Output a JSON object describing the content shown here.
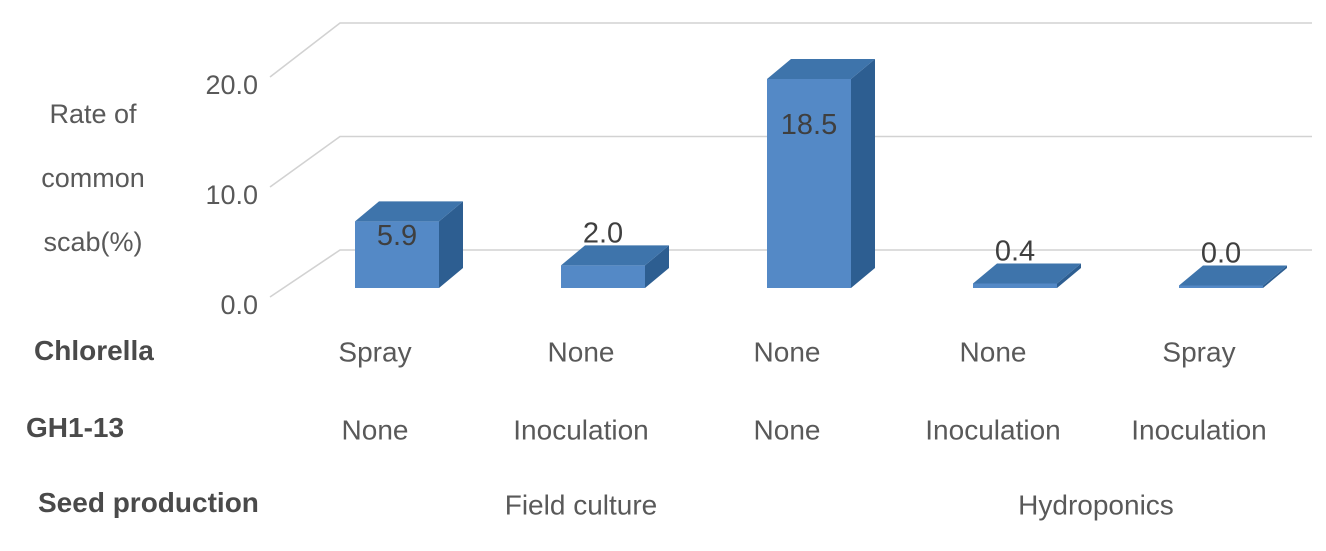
{
  "chart_data": {
    "type": "bar",
    "style": "3d-column",
    "title": "",
    "ylabel_lines": [
      "Rate of",
      "common",
      "scab(%)"
    ],
    "y_axis": {
      "min": 0,
      "max": 20,
      "ticks": [
        {
          "value": 0,
          "label": "0.0"
        },
        {
          "value": 10,
          "label": "10.0"
        },
        {
          "value": 20,
          "label": "20.0"
        }
      ],
      "grid": "on"
    },
    "series_name": "Rate of common scab(%)",
    "points": [
      {
        "chlorella": "Spray",
        "gh1_13": "None",
        "value": 5.9,
        "data_label": "5.9"
      },
      {
        "chlorella": "None",
        "gh1_13": "Inoculation",
        "value": 2.0,
        "data_label": "2.0"
      },
      {
        "chlorella": "None",
        "gh1_13": "None",
        "value": 18.5,
        "data_label": "18.5"
      },
      {
        "chlorella": "None",
        "gh1_13": "Inoculation",
        "value": 0.4,
        "data_label": "0.4"
      },
      {
        "chlorella": "Spray",
        "gh1_13": "Inoculation",
        "value": 0.0,
        "data_label": "0.0"
      }
    ],
    "axis_rows": [
      {
        "header": "Chlorella",
        "key": "chlorella"
      },
      {
        "header": "GH1-13",
        "key": "gh1_13"
      },
      {
        "header": "Seed production",
        "key": "group"
      }
    ],
    "groups": [
      {
        "label": "Field culture",
        "from": 0,
        "to": 2
      },
      {
        "label": "Hydroponics",
        "from": 3,
        "to": 4
      }
    ],
    "legend": "none",
    "colors": {
      "bar_front": "#5489C6",
      "bar_top": "#3E74AB",
      "bar_side": "#2D5E91",
      "gridline": "#D2D2D2",
      "tick_text": "#595959",
      "category_text": "#595959",
      "header_text": "#4A4A4A",
      "data_label_text": "#3F3F3F",
      "background": "#FFFFFF"
    }
  }
}
